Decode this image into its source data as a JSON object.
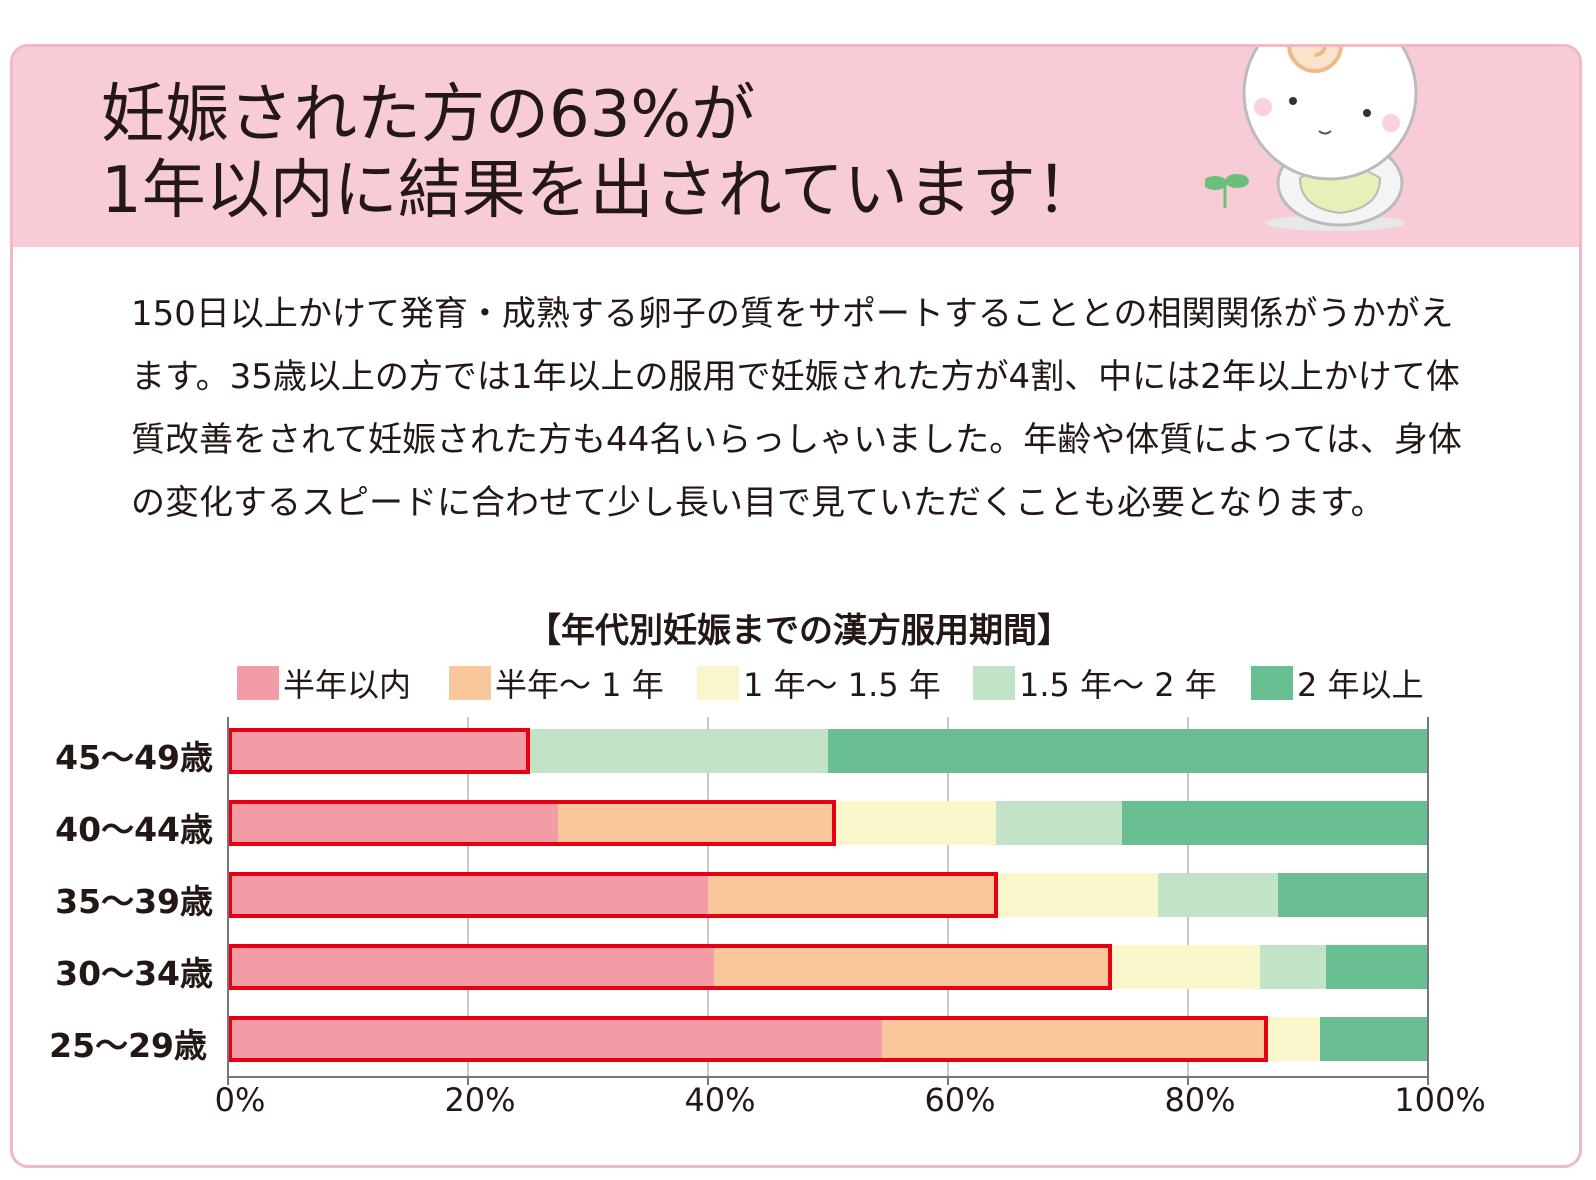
{
  "header": {
    "title_line1": "妊娠された方の63%が",
    "title_line2": "1年以内に結果を出されています！"
  },
  "body_text": "150日以上かけて発育・成熟する卵子の質をサポートすることとの相関関係がうかがえます。35歳以上の方では1年以上の服用で妊娠された方が4割、中には2年以上かけて体質改善をされて妊娠された方も44名いらっしゃいました。年齢や体質によっては、身体の変化するスピードに合わせて少し長い目で見ていただくことも必要となります。",
  "colors": {
    "header_bg": "#f8ccd6",
    "border": "#f2b8c6",
    "highlight": "#e60012"
  },
  "chart_data": {
    "type": "bar",
    "orientation": "horizontal",
    "stacked": true,
    "title": "【年代別妊娠までの漢方服用期間】",
    "categories": [
      "45～49歳",
      "40～44歳",
      "35～39歳",
      "30～34歳",
      "25～29歳"
    ],
    "series": [
      {
        "name": "半年以内",
        "color": "#f29ca6",
        "values": [
          25,
          27.5,
          40,
          40.5,
          54.5
        ]
      },
      {
        "name": "半年～ 1 年",
        "color": "#f8c89c",
        "values": [
          0,
          23,
          24,
          33,
          32
        ]
      },
      {
        "name": "1 年～ 1.5 年",
        "color": "#faf6cc",
        "values": [
          0,
          13.5,
          13.5,
          12.5,
          4.5
        ]
      },
      {
        "name": "1.5 年～ 2 年",
        "color": "#c3e3c6",
        "values": [
          25,
          10.5,
          10,
          5.5,
          0
        ]
      },
      {
        "name": "2 年以上",
        "color": "#69bf91",
        "values": [
          50,
          25.5,
          12.5,
          8.5,
          9
        ]
      }
    ],
    "highlight_within_one_year": [
      25,
      50.5,
      64,
      73.5,
      86.5
    ],
    "xlim": [
      0,
      100
    ],
    "x_ticks": [
      "0%",
      "20%",
      "40%",
      "60%",
      "80%",
      "100%"
    ],
    "grid": true,
    "legend_position": "top"
  }
}
